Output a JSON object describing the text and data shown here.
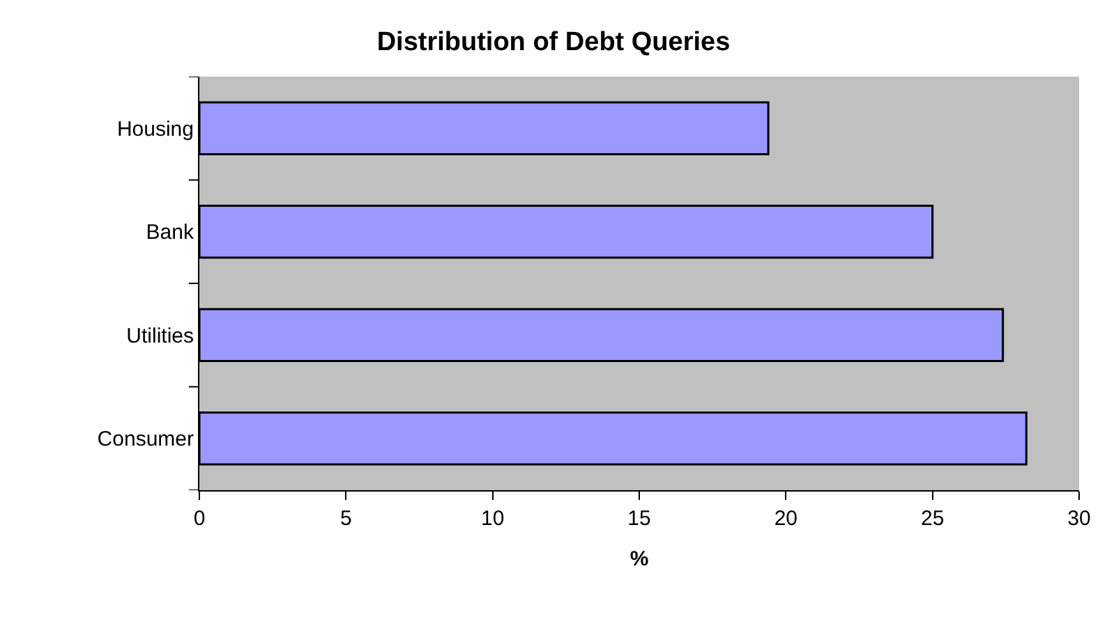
{
  "chart_data": {
    "type": "bar",
    "orientation": "horizontal",
    "title": "Distribution of Debt Queries",
    "xlabel": "%",
    "categories": [
      "Housing",
      "Bank",
      "Utilities",
      "Consumer"
    ],
    "values": [
      19.4,
      25.0,
      27.4,
      28.2
    ],
    "color": "#9999ff",
    "xlim": [
      0,
      30
    ],
    "xticks": [
      0,
      5,
      10,
      15,
      20,
      25,
      30
    ],
    "grid": false,
    "legend": false
  }
}
